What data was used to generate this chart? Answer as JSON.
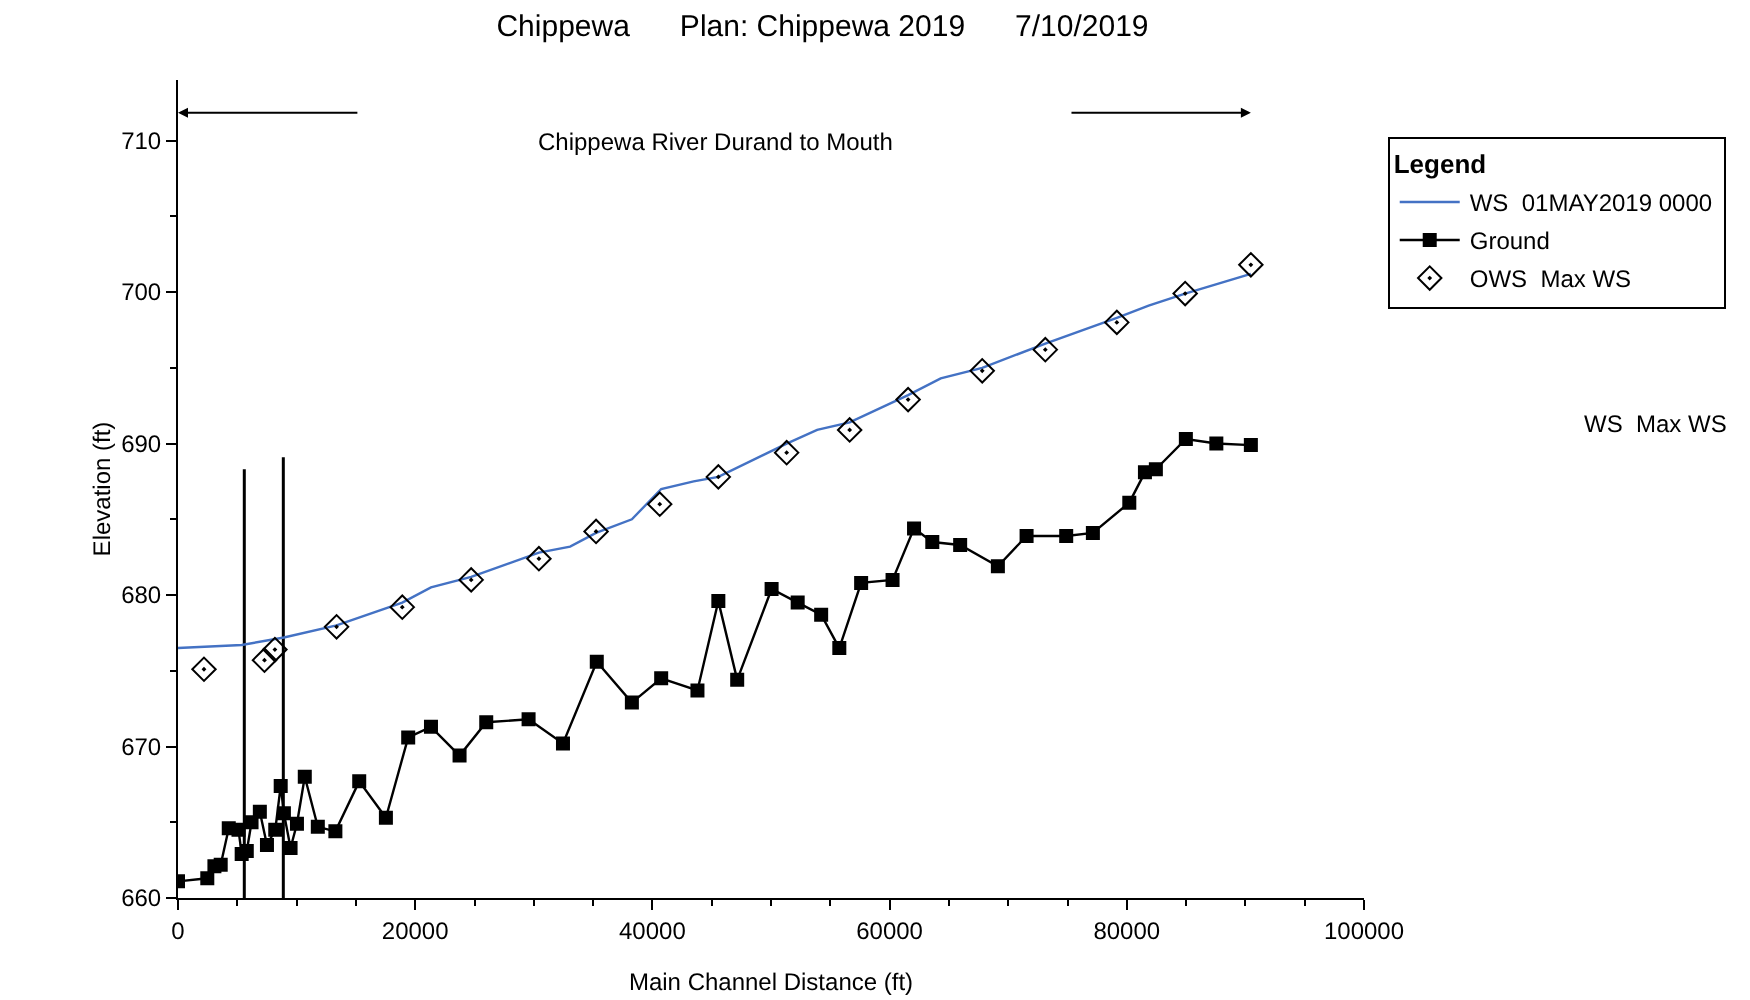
{
  "chart_data": {
    "type": "line",
    "title": "Chippewa      Plan: Chippewa 2019      7/10/2019",
    "xlabel": "Main Channel Distance (ft)",
    "ylabel": "Elevation (ft)",
    "legend_title": "Legend",
    "legend": "right",
    "grid": false,
    "xlim": [
      0,
      100000
    ],
    "xticks": [
      0,
      20000,
      40000,
      60000,
      80000,
      100000
    ],
    "ylim": [
      660,
      714
    ],
    "yticks": [
      660,
      670,
      680,
      690,
      700,
      710
    ],
    "annotations": [
      "Chippewa River Durand to Mouth",
      "WS  Max WS"
    ],
    "series": [
      {
        "name": "WS  01MAY2019 0000",
        "color": "#4472c4",
        "marker": "none",
        "x": [
          0,
          5370,
          8930,
          13370,
          18910,
          21330,
          24720,
          30430,
          33060,
          35250,
          38270,
          40740,
          43480,
          45560,
          51320,
          53890,
          56630,
          61560,
          64310,
          67810,
          73130,
          79160,
          81840,
          84920,
          90460
        ],
        "values": [
          676.5,
          676.7,
          677.2,
          678.0,
          679.5,
          680.5,
          681.2,
          682.8,
          683.2,
          684.1,
          685.0,
          687.0,
          687.5,
          687.8,
          690.0,
          690.9,
          691.4,
          693.2,
          694.3,
          695.0,
          696.6,
          698.3,
          699.1,
          699.9,
          701.2
        ]
      },
      {
        "name": "Ground",
        "color": "#000000",
        "marker": "square",
        "x": [
          0,
          2470,
          3070,
          3600,
          4280,
          5100,
          5370,
          5800,
          6200,
          6900,
          7500,
          8200,
          8660,
          8930,
          9490,
          10030,
          10690,
          11790,
          13270,
          15280,
          17530,
          19410,
          21330,
          23740,
          25990,
          29560,
          32460,
          35310,
          38270,
          40740,
          43800,
          45560,
          47150,
          50050,
          52250,
          54230,
          55760,
          57600,
          60250,
          62060,
          63600,
          65950,
          69130,
          71550,
          74890,
          77140,
          80210,
          81530,
          82450,
          84980,
          87550,
          90460
        ],
        "values": [
          661.1,
          661.3,
          662.1,
          662.2,
          664.6,
          664.5,
          662.9,
          663.1,
          665.0,
          665.7,
          663.5,
          664.5,
          667.4,
          665.6,
          663.3,
          664.9,
          668.0,
          664.7,
          664.4,
          667.7,
          665.3,
          670.6,
          671.3,
          669.4,
          671.6,
          671.8,
          670.2,
          675.6,
          672.9,
          674.5,
          673.7,
          679.6,
          674.4,
          680.4,
          679.5,
          678.7,
          676.5,
          680.8,
          681.0,
          684.4,
          683.5,
          683.3,
          681.9,
          683.9,
          683.9,
          684.1,
          686.1,
          688.1,
          688.3,
          690.3,
          690.0,
          689.9
        ]
      },
      {
        "name": "OWS  Max WS",
        "type": "scatter",
        "color": "#000000",
        "marker": "diamond",
        "x": [
          2190,
          7290,
          8170,
          13370,
          18910,
          24720,
          30430,
          35250,
          40620,
          45560,
          51320,
          56630,
          61560,
          67810,
          73130,
          79160,
          84920,
          90460
        ],
        "values": [
          675.1,
          675.7,
          676.4,
          677.9,
          679.2,
          681.0,
          682.4,
          684.2,
          686.0,
          687.8,
          689.4,
          690.9,
          692.9,
          694.8,
          696.2,
          698.0,
          699.9,
          701.8
        ]
      },
      {
        "color": "#000000",
        "marker": "none",
        "x": [
          5590,
          5590
        ],
        "values": [
          660,
          688.3
        ]
      },
      {
        "color": "#000000",
        "marker": "none",
        "x": [
          8880,
          8880
        ],
        "values": [
          660,
          689.1
        ]
      }
    ]
  }
}
